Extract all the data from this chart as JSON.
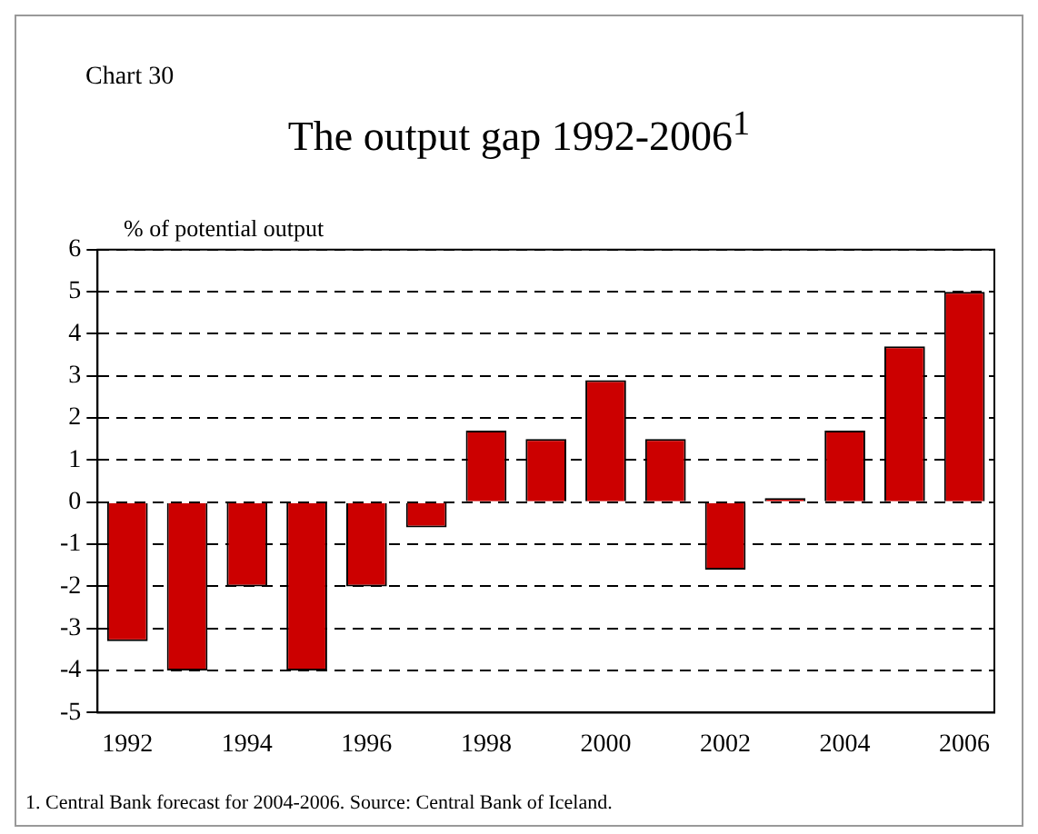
{
  "chart_data": {
    "type": "bar",
    "title": "The output gap 1992-2006$^{1}$",
    "ylabel": "% of potential output",
    "annotations": [
      "Chart 30",
      "1. Central Bank forecast for 2004-2006.  Source: Central Bank of Iceland."
    ],
    "categories": [
      "1992",
      null,
      "1994",
      null,
      "1996",
      null,
      "1998",
      null,
      "2000",
      null,
      "2002",
      null,
      "2004",
      null,
      "2006"
    ],
    "values": [
      -3.3,
      -4.0,
      -2.0,
      -4.0,
      -2.0,
      -0.6,
      1.7,
      1.5,
      2.9,
      1.5,
      -1.6,
      0.1,
      1.7,
      3.7,
      5.0
    ],
    "color": "#cc0000",
    "ylim": [
      -5,
      6
    ],
    "yticks": [
      -5,
      -4,
      -3,
      -2,
      -1,
      0,
      1,
      2,
      3,
      4,
      5,
      6
    ],
    "grid": "y",
    "legend": false
  }
}
